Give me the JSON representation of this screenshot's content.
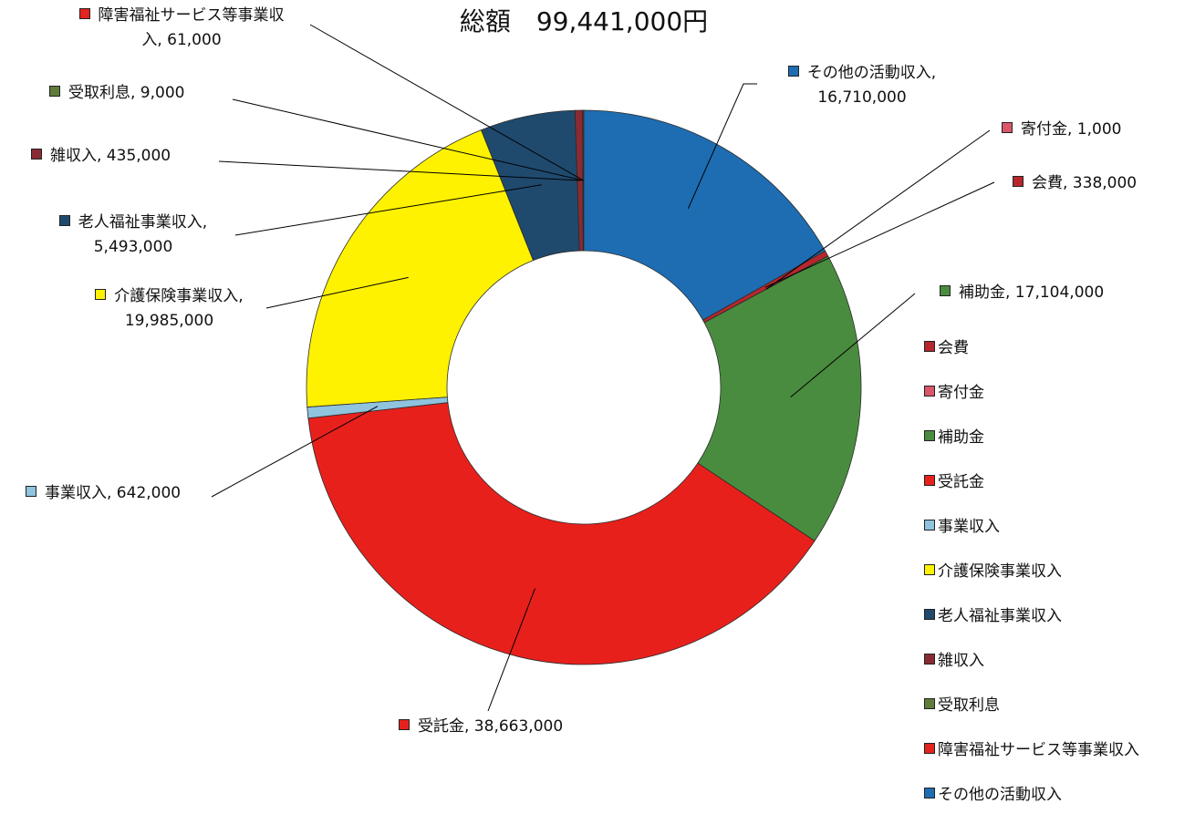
{
  "chart_data": {
    "type": "donut",
    "title": "総額　99,441,000円",
    "categories": [
      "会費",
      "寄付金",
      "補助金",
      "受託金",
      "事業収入",
      "介護保険事業収入",
      "老人福祉事業収入",
      "雑収入",
      "受取利息",
      "障害福祉サービス等事業収入",
      "その他の活動収入"
    ],
    "values": [
      338000,
      1000,
      17104000,
      38663000,
      642000,
      19985000,
      5493000,
      435000,
      9000,
      61000,
      16710000
    ],
    "value_labels": [
      "会費, 338,000",
      "寄付金, 1,000",
      "補助金, 17,104,000",
      "受託金, 38,663,000",
      "事業収入, 642,000",
      "介護保険事業収入,\n19,985,000",
      "老人福祉事業収入,\n5,493,000",
      "雑収入, 435,000",
      "受取利息, 9,000",
      "障害福祉サービス等事業収\n入, 61,000",
      "その他の活動収入,\n16,710,000"
    ],
    "colors": [
      "#b8262d",
      "#d9566b",
      "#4a8c3f",
      "#e8201c",
      "#8fc3de",
      "#fff200",
      "#1f4a6e",
      "#8a2b33",
      "#5f7c3b",
      "#e3231f",
      "#1e6db3"
    ],
    "legend": "right"
  }
}
